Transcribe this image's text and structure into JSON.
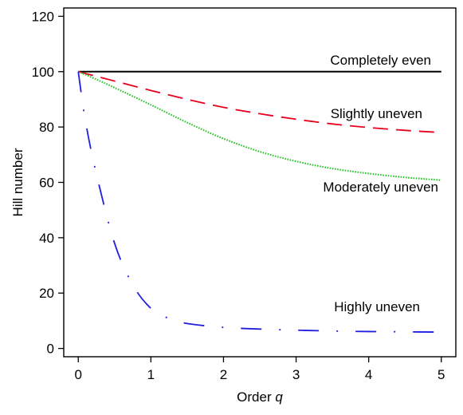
{
  "chart_data": {
    "type": "line",
    "title": "",
    "xlabel_prefix": "Order ",
    "xlabel_var": "q",
    "ylabel": "Hill number",
    "xlim": [
      -0.2,
      5.2
    ],
    "ylim": [
      -3,
      123
    ],
    "xticks": [
      0,
      1,
      2,
      3,
      4,
      5
    ],
    "yticks": [
      0,
      20,
      40,
      60,
      80,
      100,
      120
    ],
    "grid": false,
    "legend": "none",
    "series": [
      {
        "name": "Completely even",
        "color": "#000000",
        "dash": "solid",
        "x": [
          0,
          1,
          2,
          3,
          4,
          5
        ],
        "y": [
          100,
          100,
          100,
          100,
          100,
          100
        ]
      },
      {
        "name": "Slightly uneven",
        "color": "#e8001c",
        "dash": "dashed",
        "x": [
          0,
          0.25,
          0.5,
          1,
          1.5,
          2,
          2.5,
          3,
          3.5,
          4,
          4.5,
          5
        ],
        "y": [
          100,
          98.3,
          96.6,
          93.2,
          90.0,
          87.1,
          84.8,
          82.8,
          81.1,
          79.8,
          78.8,
          78.0
        ]
      },
      {
        "name": "Moderately uneven",
        "color": "#22c322",
        "dash": "dotted",
        "x": [
          0,
          0.25,
          0.5,
          1,
          1.5,
          2,
          2.5,
          3,
          3.5,
          4,
          4.5,
          5
        ],
        "y": [
          100,
          97.2,
          94.2,
          88.0,
          81.6,
          75.8,
          71.1,
          67.6,
          65.0,
          63.2,
          61.8,
          60.8
        ]
      },
      {
        "name": "Highly uneven",
        "color": "#1f1fe0",
        "dash": "dashdot",
        "x": [
          0,
          0.1,
          0.25,
          0.5,
          0.75,
          1,
          1.25,
          1.5,
          2,
          2.5,
          3,
          3.5,
          4,
          4.5,
          5
        ],
        "y": [
          100,
          82,
          63,
          38,
          23,
          14.5,
          10.8,
          9.0,
          7.6,
          7.0,
          6.6,
          6.3,
          6.1,
          6.0,
          5.9
        ]
      }
    ]
  }
}
